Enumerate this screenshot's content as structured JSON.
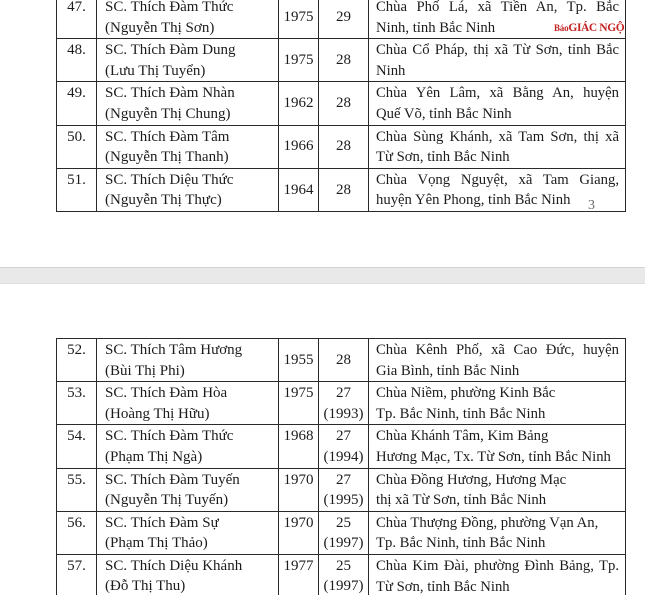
{
  "page_number": "3",
  "watermark": {
    "prefix": "Báo",
    "name": "GIÁC NGỘ",
    "color": "#c42222"
  },
  "table1": {
    "rows": [
      {
        "no": "47.",
        "name": "SC. Thích Đàm Thức",
        "birth_name": "(Nguyễn Thị Sơn)",
        "year": "1975",
        "age": "29",
        "age_note": "",
        "address_lines": [
          "Chùa Phố Lá, xã Tiền An, Tp. Bắc",
          "Ninh, tỉnh Bắc Ninh"
        ],
        "address_justified": true
      },
      {
        "no": "48.",
        "name": "SC. Thích Đàm Dung",
        "birth_name": "(Lưu Thị Tuyển)",
        "year": "1975",
        "age": "28",
        "age_note": "",
        "address_lines": [
          "Chùa Cổ Pháp, thị xã Từ Sơn, tỉnh Bắc",
          "Ninh"
        ],
        "address_justified": true
      },
      {
        "no": "49.",
        "name": "SC. Thích Đàm Nhàn",
        "birth_name": "(Nguyễn Thị Chung)",
        "year": "1962",
        "age": "28",
        "age_note": "",
        "address_lines": [
          "Chùa Yên Lâm, xã Bằng An, huyện",
          "Quế Võ, tỉnh Bắc Ninh"
        ],
        "address_justified": true
      },
      {
        "no": "50.",
        "name": "SC. Thích Đàm Tâm",
        "birth_name": "(Nguyễn Thị Thanh)",
        "year": "1966",
        "age": "28",
        "age_note": "",
        "address_lines": [
          "Chùa Sùng Khánh, xã Tam Sơn, thị xã",
          "Từ Sơn, tỉnh Bắc Ninh"
        ],
        "address_justified": true
      },
      {
        "no": "51.",
        "name": "SC. Thích Diệu Thức",
        "birth_name": "(Nguyễn Thị Thực)",
        "year": "1964",
        "age": "28",
        "age_note": "",
        "address_lines": [
          "Chùa Vọng Nguyệt, xã Tam Giang,",
          "huyện Yên Phong, tỉnh Bắc Ninh"
        ],
        "address_justified": true
      }
    ]
  },
  "table2": {
    "rows": [
      {
        "no": "52.",
        "name": "SC. Thích Tâm Hương",
        "birth_name": "(Bùi Thị Phi)",
        "year": "1955",
        "age": "28",
        "age_note": "",
        "address_lines": [
          "Chùa Kênh Phố, xã Cao Đức, huyện",
          "Gia Bình, tỉnh Bắc Ninh"
        ],
        "address_justified": true
      },
      {
        "no": "53.",
        "name": "SC. Thích Đàm Hòa",
        "birth_name": "(Hoàng Thị Hữu)",
        "year": "1975",
        "age": "27",
        "age_note": "(1993)",
        "address_lines": [
          "Chùa Niềm, phường Kinh Bắc",
          "Tp. Bắc Ninh, tỉnh Bắc Ninh"
        ],
        "address_justified": false
      },
      {
        "no": "54.",
        "name": "SC. Thích Đàm Thức",
        "birth_name": "(Phạm Thị Ngà)",
        "year": "1968",
        "age": "27",
        "age_note": "(1994)",
        "address_lines": [
          "Chùa Khánh Tâm, Kim Bảng",
          "Hương Mạc, Tx. Từ Sơn, tỉnh Bắc Ninh"
        ],
        "address_justified": false
      },
      {
        "no": "55.",
        "name": "SC. Thích Đàm Tuyến",
        "birth_name": "(Nguyễn Thị Tuyến)",
        "year": "1970",
        "age": "27",
        "age_note": "(1995)",
        "address_lines": [
          "Chùa Đồng Hương, Hương Mạc",
          "thị xã Từ Sơn, tỉnh Bắc Ninh"
        ],
        "address_justified": false
      },
      {
        "no": "56.",
        "name": "SC. Thích Đàm Sự",
        "birth_name": "(Phạm Thị Thảo)",
        "year": "1970",
        "age": "25",
        "age_note": "(1997)",
        "address_lines": [
          "Chùa Thượng Đồng, phường Vạn An,",
          "Tp. Bắc Ninh, tỉnh Bắc Ninh"
        ],
        "address_justified": false
      },
      {
        "no": "57.",
        "name": "SC. Thích Diệu Khánh",
        "birth_name": "(Đỗ Thị Thu)",
        "year": "1977",
        "age": "25",
        "age_note": "(1997)",
        "address_lines": [
          "Chùa Kim Đài, phường Đình Bảng, Tp.",
          "Từ Sơn, tỉnh Bắc Ninh"
        ],
        "address_justified": true
      }
    ]
  }
}
